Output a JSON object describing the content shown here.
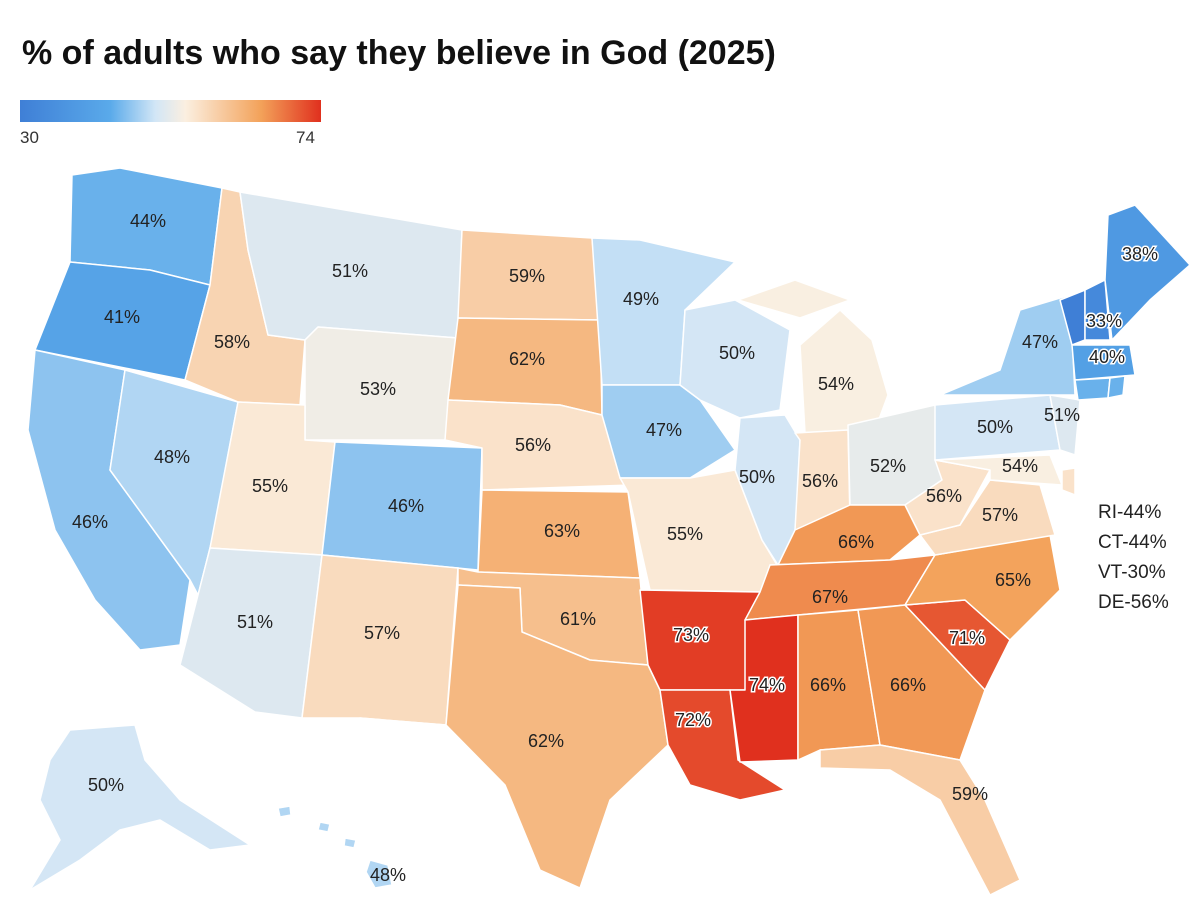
{
  "title": "% of adults who say they believe in God (2025)",
  "legend": {
    "min_label": "30",
    "max_label": "74",
    "min_value": 30,
    "max_value": 74,
    "colors": [
      "#3f7fd6",
      "#5aaaea",
      "#d2e6f6",
      "#fbefe0",
      "#f3a25a",
      "#e0301e"
    ]
  },
  "chart_data": {
    "type": "choropleth",
    "title": "% of adults who say they believe in God (2025)",
    "scale": {
      "min": 30,
      "max": 74
    },
    "states": [
      {
        "state": "WA",
        "value": 44,
        "label": "44%"
      },
      {
        "state": "OR",
        "value": 41,
        "label": "41%"
      },
      {
        "state": "CA",
        "value": 46,
        "label": "46%"
      },
      {
        "state": "NV",
        "value": 48,
        "label": "48%"
      },
      {
        "state": "ID",
        "value": 58,
        "label": "58%"
      },
      {
        "state": "MT",
        "value": 51,
        "label": "51%"
      },
      {
        "state": "WY",
        "value": 53,
        "label": "53%"
      },
      {
        "state": "UT",
        "value": 55,
        "label": "55%"
      },
      {
        "state": "AZ",
        "value": 51,
        "label": "51%"
      },
      {
        "state": "CO",
        "value": 46,
        "label": "46%"
      },
      {
        "state": "NM",
        "value": 57,
        "label": "57%"
      },
      {
        "state": "ND",
        "value": 59,
        "label": "59%"
      },
      {
        "state": "SD",
        "value": 62,
        "label": "62%"
      },
      {
        "state": "NE",
        "value": 56,
        "label": "56%"
      },
      {
        "state": "KS",
        "value": 63,
        "label": "63%"
      },
      {
        "state": "OK",
        "value": 61,
        "label": "61%"
      },
      {
        "state": "TX",
        "value": 62,
        "label": "62%"
      },
      {
        "state": "MN",
        "value": 49,
        "label": "49%"
      },
      {
        "state": "IA",
        "value": 47,
        "label": "47%"
      },
      {
        "state": "MO",
        "value": 55,
        "label": "55%"
      },
      {
        "state": "AR",
        "value": 73,
        "label": "73%"
      },
      {
        "state": "LA",
        "value": 72,
        "label": "72%"
      },
      {
        "state": "WI",
        "value": 50,
        "label": "50%"
      },
      {
        "state": "IL",
        "value": 50,
        "label": "50%"
      },
      {
        "state": "MI",
        "value": 54,
        "label": "54%"
      },
      {
        "state": "IN",
        "value": 56,
        "label": "56%"
      },
      {
        "state": "OH",
        "value": 52,
        "label": "52%"
      },
      {
        "state": "KY",
        "value": 66,
        "label": "66%"
      },
      {
        "state": "TN",
        "value": 67,
        "label": "67%"
      },
      {
        "state": "MS",
        "value": 74,
        "label": "74%"
      },
      {
        "state": "AL",
        "value": 66,
        "label": "66%"
      },
      {
        "state": "GA",
        "value": 66,
        "label": "66%"
      },
      {
        "state": "FL",
        "value": 59,
        "label": "59%"
      },
      {
        "state": "SC",
        "value": 71,
        "label": "71%"
      },
      {
        "state": "NC",
        "value": 65,
        "label": "65%"
      },
      {
        "state": "VA",
        "value": 57,
        "label": "57%"
      },
      {
        "state": "WV",
        "value": 56,
        "label": "56%"
      },
      {
        "state": "MD",
        "value": 54,
        "label": "54%"
      },
      {
        "state": "PA",
        "value": 50,
        "label": "50%"
      },
      {
        "state": "NJ",
        "value": 51,
        "label": "51%"
      },
      {
        "state": "NY",
        "value": 47,
        "label": "47%"
      },
      {
        "state": "NH",
        "value": 33,
        "label": "33%"
      },
      {
        "state": "MA",
        "value": 40,
        "label": "40%"
      },
      {
        "state": "ME",
        "value": 38,
        "label": "38%"
      },
      {
        "state": "AK",
        "value": 50,
        "label": "50%"
      },
      {
        "state": "HI",
        "value": 48,
        "label": "48%"
      },
      {
        "state": "RI",
        "value": 44,
        "label": "RI-44%"
      },
      {
        "state": "CT",
        "value": 44,
        "label": "CT-44%"
      },
      {
        "state": "VT",
        "value": 30,
        "label": "VT-30%"
      },
      {
        "state": "DE",
        "value": 56,
        "label": "DE-56%"
      }
    ]
  }
}
